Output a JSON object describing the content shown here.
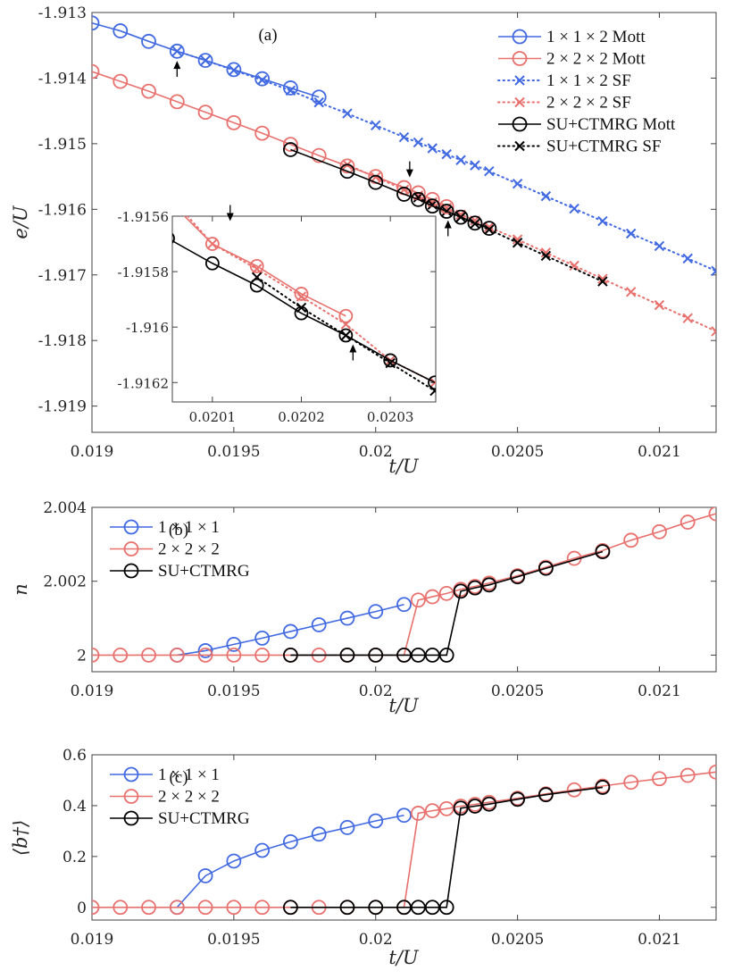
{
  "colors": {
    "blue": "#4169E1",
    "red": "#E8716E",
    "black": "#000000",
    "axis": "#404040"
  },
  "chart_data": [
    {
      "id": "a",
      "type": "line",
      "panel_tag": "(a)",
      "xlabel": "t/U",
      "ylabel": "e/U",
      "xlim": [
        0.019,
        0.0212
      ],
      "ylim": [
        -1.9194,
        -1.913
      ],
      "xticks": [
        0.019,
        0.0195,
        0.02,
        0.0205,
        0.021
      ],
      "xtick_labels": [
        "0.019",
        "0.0195",
        "0.02",
        "0.0205",
        "0.021"
      ],
      "yticks": [
        -1.913,
        -1.914,
        -1.915,
        -1.916,
        -1.917,
        -1.918,
        -1.919
      ],
      "ytick_labels": [
        "-1.913",
        "-1.914",
        "-1.915",
        "-1.916",
        "-1.917",
        "-1.918",
        "-1.919"
      ],
      "legend_position": "top-right",
      "series": [
        {
          "name": "1 × 1 × 2 Mott",
          "color": "blue",
          "style": "solid",
          "marker": "circle",
          "x": [
            0.019,
            0.0191,
            0.0192,
            0.0193,
            0.0194,
            0.0195,
            0.0196,
            0.0197,
            0.0198
          ],
          "y": [
            -1.91316,
            -1.91328,
            -1.91344,
            -1.91359,
            -1.91373,
            -1.91387,
            -1.91401,
            -1.91415,
            -1.91429
          ]
        },
        {
          "name": "2 × 2 × 2 Mott",
          "color": "red",
          "style": "solid",
          "marker": "circle",
          "x": [
            0.019,
            0.0191,
            0.0192,
            0.0193,
            0.0194,
            0.0195,
            0.0196,
            0.0197,
            0.0198,
            0.0199,
            0.02,
            0.0201,
            0.02015,
            0.0202,
            0.02025
          ],
          "y": [
            -1.9139,
            -1.91405,
            -1.9142,
            -1.91436,
            -1.91452,
            -1.91468,
            -1.91484,
            -1.91501,
            -1.91518,
            -1.91534,
            -1.9155,
            -1.91567,
            -1.91575,
            -1.91585,
            -1.91596
          ]
        },
        {
          "name": "1 × 1 × 2 SF",
          "color": "blue",
          "style": "dotted",
          "marker": "x",
          "x": [
            0.0193,
            0.0194,
            0.0195,
            0.0196,
            0.0197,
            0.0198,
            0.0199,
            0.02,
            0.0201,
            0.02015,
            0.0202,
            0.02025,
            0.0203,
            0.02035,
            0.0204,
            0.0205,
            0.0206,
            0.0207,
            0.0208,
            0.0209,
            0.021,
            0.0211,
            0.0212
          ],
          "y": [
            -1.91359,
            -1.91373,
            -1.91388,
            -1.91403,
            -1.91419,
            -1.91437,
            -1.91454,
            -1.91472,
            -1.9149,
            -1.91498,
            -1.91507,
            -1.91516,
            -1.91525,
            -1.91533,
            -1.91542,
            -1.91561,
            -1.9158,
            -1.91599,
            -1.91618,
            -1.91637,
            -1.91656,
            -1.91675,
            -1.91694
          ]
        },
        {
          "name": "2 × 2 × 2 SF",
          "color": "red",
          "style": "dotted",
          "marker": "x",
          "x": [
            0.0199,
            0.02,
            0.0201,
            0.02015,
            0.0202,
            0.02025,
            0.0203,
            0.02035,
            0.0204,
            0.0205,
            0.0206,
            0.0207,
            0.0208,
            0.0209,
            0.021,
            0.0211,
            0.0212
          ],
          "y": [
            -1.91532,
            -1.91551,
            -1.9157,
            -1.91579,
            -1.91589,
            -1.91598,
            -1.91608,
            -1.91617,
            -1.91627,
            -1.91646,
            -1.91666,
            -1.91686,
            -1.91706,
            -1.91726,
            -1.91746,
            -1.91766,
            -1.91786
          ]
        },
        {
          "name": "SU+CTMRG Mott",
          "color": "black",
          "style": "solid",
          "marker": "circle",
          "x": [
            0.0197,
            0.0199,
            0.02,
            0.0201,
            0.02015,
            0.0202,
            0.02025,
            0.0203,
            0.02035,
            0.0204
          ],
          "y": [
            -1.91509,
            -1.91542,
            -1.91559,
            -1.91577,
            -1.91585,
            -1.91595,
            -1.91603,
            -1.91612,
            -1.91621,
            -1.91629
          ]
        },
        {
          "name": "SU+CTMRG SF",
          "color": "black",
          "style": "dotted",
          "marker": "x",
          "x": [
            0.02015,
            0.0202,
            0.02025,
            0.0203,
            0.02035,
            0.0204,
            0.0205,
            0.0206,
            0.0208
          ],
          "y": [
            -1.91582,
            -1.91593,
            -1.91603,
            -1.91612,
            -1.91622,
            -1.91631,
            -1.91651,
            -1.91671,
            -1.9171
          ]
        }
      ],
      "annotations": [
        {
          "type": "arrow-up",
          "x": 0.0193,
          "y": -1.9136,
          "label": ""
        },
        {
          "type": "arrow-down",
          "x": 0.02012,
          "y": -1.91565,
          "label": ""
        },
        {
          "type": "arrow-up",
          "x": 0.020255,
          "y": -1.91603,
          "label": ""
        }
      ],
      "inset": {
        "xlim": [
          0.020055,
          0.020351
        ],
        "ylim": [
          -1.91627,
          -1.9156
        ],
        "xticks": [
          0.0201,
          0.0202,
          0.0203
        ],
        "xtick_labels": [
          "0.0201",
          "0.0202",
          "0.0203"
        ],
        "yticks": [
          -1.9156,
          -1.9158,
          -1.916,
          -1.9162
        ],
        "ytick_labels": [
          "-1.9156",
          "-1.9158",
          "-1.916",
          "-1.9162"
        ],
        "series": [
          {
            "name": "2 × 2 × 2 Mott",
            "color": "red",
            "style": "solid",
            "marker": "circle",
            "x": [
              0.02005,
              0.0201,
              0.02015,
              0.0202,
              0.02025
            ],
            "y": [
              -1.91554,
              -1.9157,
              -1.91578,
              -1.91588,
              -1.91596
            ]
          },
          {
            "name": "2 × 2 × 2 SF",
            "color": "red",
            "style": "dotted",
            "marker": "x",
            "x": [
              0.02005,
              0.0201,
              0.02015,
              0.0202,
              0.02025,
              0.0203,
              0.02035
            ],
            "y": [
              -1.91552,
              -1.9157,
              -1.91579,
              -1.91589,
              -1.91599,
              -1.91612,
              -1.9162
            ]
          },
          {
            "name": "SU+CTMRG Mott",
            "color": "black",
            "style": "solid",
            "marker": "circle",
            "x": [
              0.02005,
              0.0201,
              0.02015,
              0.0202,
              0.02025,
              0.0203,
              0.02035
            ],
            "y": [
              -1.91568,
              -1.91577,
              -1.91585,
              -1.91595,
              -1.91603,
              -1.91612,
              -1.9162
            ]
          },
          {
            "name": "SU+CTMRG SF",
            "color": "black",
            "style": "dotted",
            "marker": "x",
            "x": [
              0.02015,
              0.0202,
              0.02025,
              0.0203,
              0.02035
            ],
            "y": [
              -1.91582,
              -1.91593,
              -1.91603,
              -1.91613,
              -1.91623
            ]
          }
        ],
        "annotations": [
          {
            "type": "arrow-down",
            "x": 0.02012,
            "y": -1.91565
          },
          {
            "type": "arrow-up",
            "x": 0.020258,
            "y": -1.91603
          }
        ]
      }
    },
    {
      "id": "b",
      "type": "line",
      "panel_tag": "(b)",
      "xlabel": "t/U",
      "ylabel": "n",
      "xlim": [
        0.019,
        0.0212
      ],
      "ylim": [
        1.99955,
        2.004
      ],
      "xticks": [
        0.019,
        0.0195,
        0.02,
        0.0205,
        0.021
      ],
      "xtick_labels": [
        "0.019",
        "0.0195",
        "0.02",
        "0.0205",
        "0.021"
      ],
      "yticks": [
        2,
        2.002,
        2.004
      ],
      "ytick_labels": [
        "2",
        "2.002",
        "2.004"
      ],
      "legend_position": "top-left",
      "series": [
        {
          "name": "1 × 1 × 1",
          "color": "blue",
          "style": "solid",
          "marker": "circle",
          "x": [
            0.0193,
            0.0194,
            0.0195,
            0.0196,
            0.0197,
            0.0198,
            0.0199,
            0.02,
            0.0201
          ],
          "y": [
            2.0,
            2.00012,
            2.00029,
            2.00046,
            2.00064,
            2.00082,
            2.001,
            2.00118,
            2.00137
          ]
        },
        {
          "name": "2 × 2 × 2",
          "color": "red",
          "style": "solid",
          "marker": "circle",
          "x": [
            0.019,
            0.0191,
            0.0192,
            0.0193,
            0.0194,
            0.0195,
            0.0196,
            0.0197,
            0.0198,
            0.0199,
            0.02,
            0.0201,
            0.02015,
            0.0202,
            0.02025,
            0.0203,
            0.02035,
            0.0204,
            0.0205,
            0.0206,
            0.0207,
            0.0208,
            0.0209,
            0.021,
            0.0211,
            0.0212
          ],
          "y": [
            2.0,
            2.0,
            2.0,
            2.0,
            2.0,
            2.0,
            2.0,
            2.0,
            2.0,
            2.0,
            2.0,
            2.0,
            2.00149,
            2.00158,
            2.00167,
            2.00178,
            2.00186,
            2.00195,
            2.00215,
            2.00238,
            2.00262,
            2.00283,
            2.00311,
            2.00334,
            2.0036,
            2.00383
          ]
        },
        {
          "name": "SU+CTMRG",
          "color": "black",
          "style": "solid",
          "marker": "circle",
          "x": [
            0.0197,
            0.0199,
            0.02,
            0.0201,
            0.02015,
            0.0202,
            0.02025,
            0.0203,
            0.02035,
            0.0204,
            0.0205,
            0.0206,
            0.0208
          ],
          "y": [
            2.0,
            2.0,
            2.0,
            2.0,
            2.0,
            2.0,
            2.0,
            2.00173,
            2.00182,
            2.0019,
            2.00212,
            2.00235,
            2.0028
          ]
        }
      ]
    },
    {
      "id": "c",
      "type": "line",
      "panel_tag": "(c)",
      "xlabel": "t/U",
      "ylabel": "⟨b†⟩",
      "xlim": [
        0.019,
        0.0212
      ],
      "ylim": [
        -0.05,
        0.6
      ],
      "xticks": [
        0.019,
        0.0195,
        0.02,
        0.0205,
        0.021
      ],
      "xtick_labels": [
        "0.019",
        "0.0195",
        "0.02",
        "0.0205",
        "0.021"
      ],
      "yticks": [
        0,
        0.2,
        0.4,
        0.6
      ],
      "ytick_labels": [
        "0",
        "0.2",
        "0.4",
        "0.6"
      ],
      "legend_position": "top-left",
      "series": [
        {
          "name": "1 × 1 × 1",
          "color": "blue",
          "style": "solid",
          "marker": "circle",
          "x": [
            0.0193,
            0.0194,
            0.0195,
            0.0196,
            0.0197,
            0.0198,
            0.0199,
            0.02,
            0.0201
          ],
          "y": [
            0.0,
            0.124,
            0.182,
            0.224,
            0.258,
            0.288,
            0.314,
            0.34,
            0.362
          ]
        },
        {
          "name": "2 × 2 × 2",
          "color": "red",
          "style": "solid",
          "marker": "circle",
          "x": [
            0.019,
            0.0191,
            0.0192,
            0.0193,
            0.0194,
            0.0195,
            0.0196,
            0.0197,
            0.0198,
            0.0199,
            0.02,
            0.0201,
            0.02015,
            0.0202,
            0.02025,
            0.0203,
            0.02035,
            0.0204,
            0.0205,
            0.0206,
            0.0207,
            0.0208,
            0.0209,
            0.021,
            0.0211,
            0.0212
          ],
          "y": [
            0,
            0,
            0,
            0,
            0,
            0,
            0,
            0,
            0,
            0,
            0,
            0,
            0.37,
            0.38,
            0.388,
            0.398,
            0.405,
            0.413,
            0.429,
            0.446,
            0.462,
            0.477,
            0.492,
            0.506,
            0.519,
            0.532
          ]
        },
        {
          "name": "SU+CTMRG",
          "color": "black",
          "style": "solid",
          "marker": "circle",
          "x": [
            0.0197,
            0.0199,
            0.02,
            0.0201,
            0.02015,
            0.0202,
            0.02025,
            0.0203,
            0.02035,
            0.0204,
            0.0205,
            0.0206,
            0.0208
          ],
          "y": [
            0,
            0,
            0,
            0,
            0,
            0,
            0,
            0.39,
            0.398,
            0.406,
            0.425,
            0.443,
            0.472
          ]
        }
      ]
    }
  ],
  "legends": {
    "a": [
      "1 × 1 × 2 Mott",
      "2 × 2 × 2 Mott",
      "1 × 1 × 2 SF",
      "2 × 2 × 2 SF",
      "SU+CTMRG Mott",
      "SU+CTMRG SF"
    ],
    "b": [
      "1 × 1 × 1",
      "2 × 2 × 2",
      "SU+CTMRG"
    ],
    "c": [
      "1 × 1 × 1",
      "2 × 2 × 2",
      "SU+CTMRG"
    ]
  }
}
